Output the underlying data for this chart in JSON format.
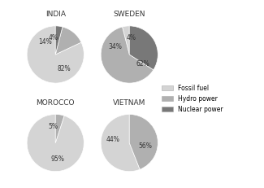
{
  "charts": [
    {
      "title": "INDIA",
      "values": [
        82,
        14,
        4
      ],
      "labels": [
        "82%",
        "14%",
        "4%"
      ],
      "startangle": 90
    },
    {
      "title": "SWEDEN",
      "values": [
        4,
        62,
        34
      ],
      "labels": [
        "4%",
        "62%",
        "34%"
      ],
      "startangle": 90
    },
    {
      "title": "MOROCCO",
      "values": [
        95,
        5,
        0
      ],
      "labels": [
        "95%",
        "5%",
        ""
      ],
      "startangle": 90
    },
    {
      "title": "VIETNAM",
      "values": [
        56,
        44,
        0
      ],
      "labels": [
        "56%",
        "44%",
        ""
      ],
      "startangle": 90
    }
  ],
  "colors": [
    "#d4d4d4",
    "#b0b0b0",
    "#787878"
  ],
  "legend_labels": [
    "Fossil fuel",
    "Hydro power",
    "Nuclear power"
  ],
  "title_fontsize": 6.5,
  "label_fontsize": 5.5,
  "background_color": "#ffffff"
}
